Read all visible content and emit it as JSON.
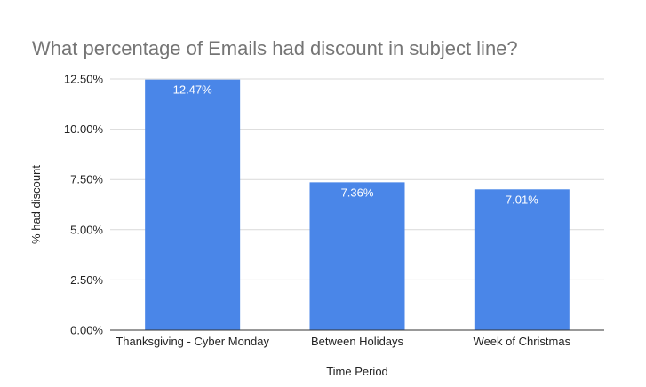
{
  "chart_data": {
    "type": "bar",
    "title": "What percentage of Emails had discount in subject line?",
    "xlabel": "Time Period",
    "ylabel": "% had discount",
    "categories": [
      "Thanksgiving - Cyber Monday",
      "Between Holidays",
      "Week of Christmas"
    ],
    "values": [
      12.47,
      7.36,
      7.01
    ],
    "data_labels": [
      "12.47%",
      "7.36%",
      "7.01%"
    ],
    "ylim": [
      0,
      12.5
    ],
    "yticks": [
      0,
      2.5,
      5,
      7.5,
      10,
      12.5
    ],
    "ytick_labels": [
      "0.00%",
      "2.50%",
      "5.00%",
      "7.50%",
      "10.00%",
      "12.50%"
    ],
    "grid": true,
    "legend": "none",
    "colors": {
      "bar": "#4a86e8",
      "grid": "#d9d9d9",
      "axis": "#333333"
    }
  }
}
